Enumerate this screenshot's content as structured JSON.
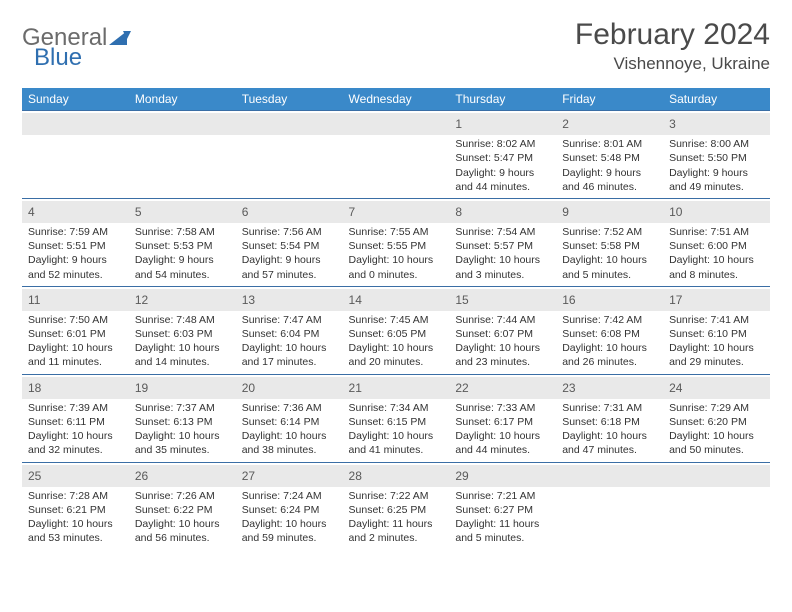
{
  "brand": {
    "general": "General",
    "blue": "Blue"
  },
  "title": "February 2024",
  "location": "Vishennoye, Ukraine",
  "weekdays": [
    "Sunday",
    "Monday",
    "Tuesday",
    "Wednesday",
    "Thursday",
    "Friday",
    "Saturday"
  ],
  "colors": {
    "header_bg": "#3a89c9",
    "header_text": "#ffffff",
    "daynum_bg": "#e9e9e9",
    "border": "#3a6ea5",
    "logo_gray": "#6b6b6b",
    "logo_blue": "#2f6fb0",
    "page_bg": "#ffffff"
  },
  "weeks": [
    [
      {
        "n": "",
        "sunrise": "",
        "sunset": "",
        "daylight": ""
      },
      {
        "n": "",
        "sunrise": "",
        "sunset": "",
        "daylight": ""
      },
      {
        "n": "",
        "sunrise": "",
        "sunset": "",
        "daylight": ""
      },
      {
        "n": "",
        "sunrise": "",
        "sunset": "",
        "daylight": ""
      },
      {
        "n": "1",
        "sunrise": "Sunrise: 8:02 AM",
        "sunset": "Sunset: 5:47 PM",
        "daylight": "Daylight: 9 hours and 44 minutes."
      },
      {
        "n": "2",
        "sunrise": "Sunrise: 8:01 AM",
        "sunset": "Sunset: 5:48 PM",
        "daylight": "Daylight: 9 hours and 46 minutes."
      },
      {
        "n": "3",
        "sunrise": "Sunrise: 8:00 AM",
        "sunset": "Sunset: 5:50 PM",
        "daylight": "Daylight: 9 hours and 49 minutes."
      }
    ],
    [
      {
        "n": "4",
        "sunrise": "Sunrise: 7:59 AM",
        "sunset": "Sunset: 5:51 PM",
        "daylight": "Daylight: 9 hours and 52 minutes."
      },
      {
        "n": "5",
        "sunrise": "Sunrise: 7:58 AM",
        "sunset": "Sunset: 5:53 PM",
        "daylight": "Daylight: 9 hours and 54 minutes."
      },
      {
        "n": "6",
        "sunrise": "Sunrise: 7:56 AM",
        "sunset": "Sunset: 5:54 PM",
        "daylight": "Daylight: 9 hours and 57 minutes."
      },
      {
        "n": "7",
        "sunrise": "Sunrise: 7:55 AM",
        "sunset": "Sunset: 5:55 PM",
        "daylight": "Daylight: 10 hours and 0 minutes."
      },
      {
        "n": "8",
        "sunrise": "Sunrise: 7:54 AM",
        "sunset": "Sunset: 5:57 PM",
        "daylight": "Daylight: 10 hours and 3 minutes."
      },
      {
        "n": "9",
        "sunrise": "Sunrise: 7:52 AM",
        "sunset": "Sunset: 5:58 PM",
        "daylight": "Daylight: 10 hours and 5 minutes."
      },
      {
        "n": "10",
        "sunrise": "Sunrise: 7:51 AM",
        "sunset": "Sunset: 6:00 PM",
        "daylight": "Daylight: 10 hours and 8 minutes."
      }
    ],
    [
      {
        "n": "11",
        "sunrise": "Sunrise: 7:50 AM",
        "sunset": "Sunset: 6:01 PM",
        "daylight": "Daylight: 10 hours and 11 minutes."
      },
      {
        "n": "12",
        "sunrise": "Sunrise: 7:48 AM",
        "sunset": "Sunset: 6:03 PM",
        "daylight": "Daylight: 10 hours and 14 minutes."
      },
      {
        "n": "13",
        "sunrise": "Sunrise: 7:47 AM",
        "sunset": "Sunset: 6:04 PM",
        "daylight": "Daylight: 10 hours and 17 minutes."
      },
      {
        "n": "14",
        "sunrise": "Sunrise: 7:45 AM",
        "sunset": "Sunset: 6:05 PM",
        "daylight": "Daylight: 10 hours and 20 minutes."
      },
      {
        "n": "15",
        "sunrise": "Sunrise: 7:44 AM",
        "sunset": "Sunset: 6:07 PM",
        "daylight": "Daylight: 10 hours and 23 minutes."
      },
      {
        "n": "16",
        "sunrise": "Sunrise: 7:42 AM",
        "sunset": "Sunset: 6:08 PM",
        "daylight": "Daylight: 10 hours and 26 minutes."
      },
      {
        "n": "17",
        "sunrise": "Sunrise: 7:41 AM",
        "sunset": "Sunset: 6:10 PM",
        "daylight": "Daylight: 10 hours and 29 minutes."
      }
    ],
    [
      {
        "n": "18",
        "sunrise": "Sunrise: 7:39 AM",
        "sunset": "Sunset: 6:11 PM",
        "daylight": "Daylight: 10 hours and 32 minutes."
      },
      {
        "n": "19",
        "sunrise": "Sunrise: 7:37 AM",
        "sunset": "Sunset: 6:13 PM",
        "daylight": "Daylight: 10 hours and 35 minutes."
      },
      {
        "n": "20",
        "sunrise": "Sunrise: 7:36 AM",
        "sunset": "Sunset: 6:14 PM",
        "daylight": "Daylight: 10 hours and 38 minutes."
      },
      {
        "n": "21",
        "sunrise": "Sunrise: 7:34 AM",
        "sunset": "Sunset: 6:15 PM",
        "daylight": "Daylight: 10 hours and 41 minutes."
      },
      {
        "n": "22",
        "sunrise": "Sunrise: 7:33 AM",
        "sunset": "Sunset: 6:17 PM",
        "daylight": "Daylight: 10 hours and 44 minutes."
      },
      {
        "n": "23",
        "sunrise": "Sunrise: 7:31 AM",
        "sunset": "Sunset: 6:18 PM",
        "daylight": "Daylight: 10 hours and 47 minutes."
      },
      {
        "n": "24",
        "sunrise": "Sunrise: 7:29 AM",
        "sunset": "Sunset: 6:20 PM",
        "daylight": "Daylight: 10 hours and 50 minutes."
      }
    ],
    [
      {
        "n": "25",
        "sunrise": "Sunrise: 7:28 AM",
        "sunset": "Sunset: 6:21 PM",
        "daylight": "Daylight: 10 hours and 53 minutes."
      },
      {
        "n": "26",
        "sunrise": "Sunrise: 7:26 AM",
        "sunset": "Sunset: 6:22 PM",
        "daylight": "Daylight: 10 hours and 56 minutes."
      },
      {
        "n": "27",
        "sunrise": "Sunrise: 7:24 AM",
        "sunset": "Sunset: 6:24 PM",
        "daylight": "Daylight: 10 hours and 59 minutes."
      },
      {
        "n": "28",
        "sunrise": "Sunrise: 7:22 AM",
        "sunset": "Sunset: 6:25 PM",
        "daylight": "Daylight: 11 hours and 2 minutes."
      },
      {
        "n": "29",
        "sunrise": "Sunrise: 7:21 AM",
        "sunset": "Sunset: 6:27 PM",
        "daylight": "Daylight: 11 hours and 5 minutes."
      },
      {
        "n": "",
        "sunrise": "",
        "sunset": "",
        "daylight": ""
      },
      {
        "n": "",
        "sunrise": "",
        "sunset": "",
        "daylight": ""
      }
    ]
  ]
}
